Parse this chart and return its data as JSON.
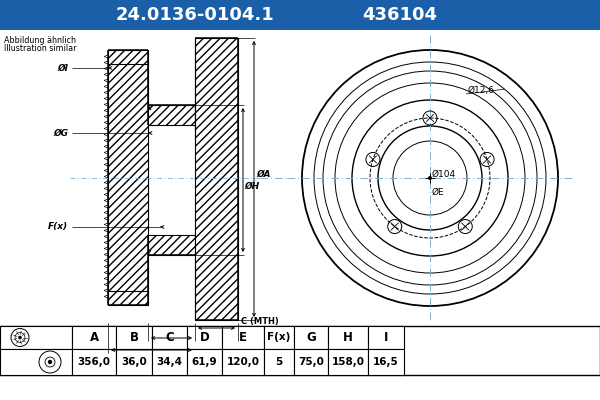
{
  "title_part": "24.0136-0104.1",
  "title_code": "436104",
  "header_bg": "#1a5fa8",
  "header_text_color": "#ffffff",
  "body_bg": "#ffffff",
  "note_line1": "Abbildung ähnlich",
  "note_line2": "Illustration similar",
  "table_headers": [
    "A",
    "B",
    "C",
    "D",
    "E",
    "F(x)",
    "G",
    "H",
    "I"
  ],
  "table_values": [
    "356,0",
    "36,0",
    "34,4",
    "61,9",
    "120,0",
    "5",
    "75,0",
    "158,0",
    "16,5"
  ],
  "center_line_color": "#7ab0d0",
  "line_color": "#000000",
  "hatch_color": "#555555",
  "front_label_outer": "Ø12,6",
  "front_label_hub": "Ø104",
  "front_label_bore": "ØE",
  "num_bolts": 5
}
